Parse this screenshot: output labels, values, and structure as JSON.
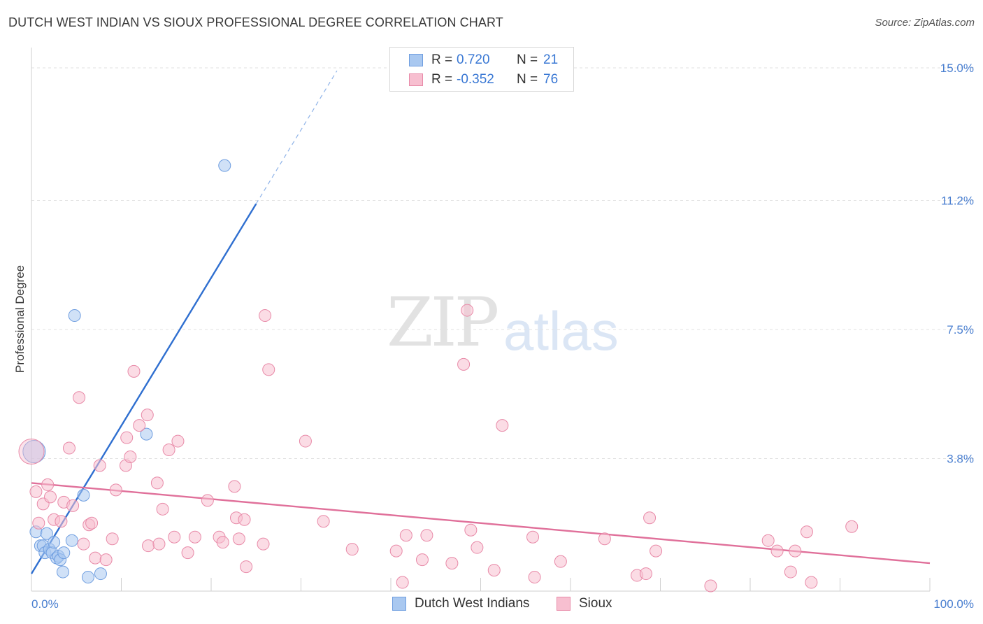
{
  "header": {
    "title": "DUTCH WEST INDIAN VS SIOUX PROFESSIONAL DEGREE CORRELATION CHART",
    "source": "Source: ZipAtlas.com"
  },
  "watermark": {
    "zip": "ZIP",
    "atlas": "atlas"
  },
  "legend": {
    "rows": [
      {
        "r_label": "R =",
        "r_value": "0.720",
        "n_label": "N =",
        "n_value": "21",
        "color": "#a9c8f0",
        "border": "#6f9ee0"
      },
      {
        "r_label": "R =",
        "r_value": "-0.352",
        "n_label": "N =",
        "n_value": "76",
        "color": "#f7bfd0",
        "border": "#e88aa8"
      }
    ]
  },
  "bottom_legend": [
    {
      "label": "Dutch West Indians",
      "color": "#a9c8f0",
      "border": "#6f9ee0"
    },
    {
      "label": "Sioux",
      "color": "#f7bfd0",
      "border": "#e88aa8"
    }
  ],
  "chart_data": {
    "type": "scatter",
    "title": "DUTCH WEST INDIAN VS SIOUX PROFESSIONAL DEGREE CORRELATION CHART",
    "xlabel": "",
    "ylabel": "Professional Degree",
    "xlim": [
      0,
      100
    ],
    "ylim": [
      0,
      15
    ],
    "x_tick_labels": [
      "0.0%",
      "100.0%"
    ],
    "y_ticks": [
      3.8,
      7.5,
      11.2,
      15.0
    ],
    "y_tick_labels": [
      "3.8%",
      "7.5%",
      "11.2%",
      "15.0%"
    ],
    "grid": true,
    "series": [
      {
        "name": "Dutch West Indians",
        "color": "#a9c8f0",
        "stroke": "#6f9ee0",
        "trend": {
          "x0": 0,
          "y0": 0.5,
          "x1": 25,
          "y1": 11.1,
          "dash_to_x": 34,
          "color": "#2f6fd0"
        },
        "points": [
          [
            0.3,
            4.0
          ],
          [
            0.5,
            1.7
          ],
          [
            1.0,
            1.3
          ],
          [
            1.3,
            1.3
          ],
          [
            1.5,
            1.1
          ],
          [
            1.7,
            1.65
          ],
          [
            2.0,
            1.2
          ],
          [
            2.3,
            1.1
          ],
          [
            2.5,
            1.4
          ],
          [
            2.8,
            0.95
          ],
          [
            3.0,
            1.0
          ],
          [
            3.2,
            0.9
          ],
          [
            3.5,
            0.55
          ],
          [
            3.6,
            1.1
          ],
          [
            4.5,
            1.45
          ],
          [
            4.8,
            7.9
          ],
          [
            5.8,
            2.75
          ],
          [
            6.3,
            0.4
          ],
          [
            7.7,
            0.5
          ],
          [
            12.8,
            4.5
          ],
          [
            21.5,
            12.2
          ]
        ]
      },
      {
        "name": "Sioux",
        "color": "#f7bfd0",
        "stroke": "#e88aa8",
        "trend": {
          "x0": 0,
          "y0": 3.1,
          "x1": 100,
          "y1": 0.8,
          "color": "#e0709a"
        },
        "points": [
          [
            0.5,
            2.85
          ],
          [
            0.8,
            1.95
          ],
          [
            1.3,
            2.5
          ],
          [
            1.8,
            3.05
          ],
          [
            2.1,
            2.7
          ],
          [
            2.5,
            2.05
          ],
          [
            3.3,
            2.0
          ],
          [
            3.6,
            2.55
          ],
          [
            4.2,
            4.1
          ],
          [
            4.6,
            2.45
          ],
          [
            5.3,
            5.55
          ],
          [
            5.8,
            1.35
          ],
          [
            6.4,
            1.9
          ],
          [
            6.7,
            1.95
          ],
          [
            7.1,
            0.95
          ],
          [
            7.6,
            3.6
          ],
          [
            8.3,
            0.9
          ],
          [
            9.0,
            1.5
          ],
          [
            9.4,
            2.9
          ],
          [
            10.5,
            3.6
          ],
          [
            10.6,
            4.4
          ],
          [
            11.0,
            3.85
          ],
          [
            11.4,
            6.3
          ],
          [
            12.0,
            4.75
          ],
          [
            12.9,
            5.05
          ],
          [
            13.0,
            1.3
          ],
          [
            14.0,
            3.1
          ],
          [
            14.2,
            1.35
          ],
          [
            14.6,
            2.35
          ],
          [
            15.3,
            4.05
          ],
          [
            15.9,
            1.55
          ],
          [
            16.3,
            4.3
          ],
          [
            17.4,
            1.1
          ],
          [
            18.2,
            1.55
          ],
          [
            19.6,
            2.6
          ],
          [
            20.9,
            1.55
          ],
          [
            21.3,
            1.4
          ],
          [
            22.6,
            3.0
          ],
          [
            22.8,
            2.1
          ],
          [
            23.1,
            1.5
          ],
          [
            23.7,
            2.05
          ],
          [
            23.9,
            0.7
          ],
          [
            25.8,
            1.35
          ],
          [
            26.0,
            7.9
          ],
          [
            26.4,
            6.35
          ],
          [
            30.5,
            4.3
          ],
          [
            32.5,
            2.0
          ],
          [
            35.7,
            1.2
          ],
          [
            40.6,
            1.15
          ],
          [
            41.3,
            0.25
          ],
          [
            41.7,
            1.6
          ],
          [
            43.5,
            0.9
          ],
          [
            44.0,
            1.6
          ],
          [
            46.8,
            0.8
          ],
          [
            48.1,
            6.5
          ],
          [
            48.5,
            8.05
          ],
          [
            48.9,
            1.75
          ],
          [
            49.6,
            1.25
          ],
          [
            51.5,
            0.6
          ],
          [
            52.4,
            4.75
          ],
          [
            55.8,
            1.55
          ],
          [
            56.0,
            0.4
          ],
          [
            58.9,
            0.85
          ],
          [
            63.8,
            1.5
          ],
          [
            67.4,
            0.45
          ],
          [
            68.4,
            0.5
          ],
          [
            68.8,
            2.1
          ],
          [
            69.5,
            1.15
          ],
          [
            75.6,
            0.15
          ],
          [
            82.0,
            1.45
          ],
          [
            83.0,
            1.15
          ],
          [
            84.5,
            0.55
          ],
          [
            85.0,
            1.15
          ],
          [
            86.3,
            1.7
          ],
          [
            86.8,
            0.25
          ],
          [
            91.3,
            1.85
          ]
        ]
      }
    ]
  }
}
